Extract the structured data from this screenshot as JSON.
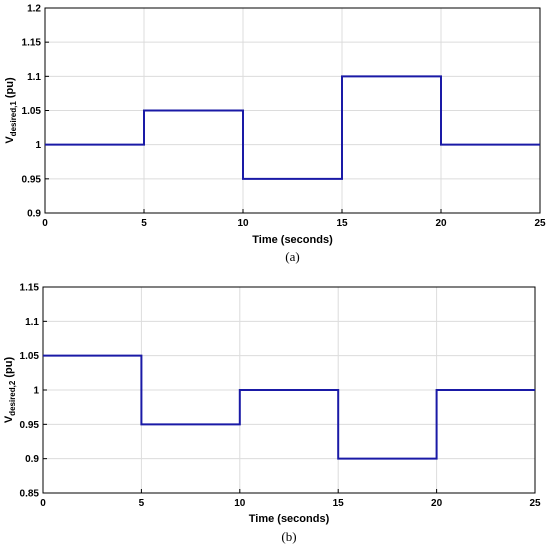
{
  "chart_data": [
    {
      "type": "line",
      "caption": "(a)",
      "xlabel": "Time (seconds)",
      "ylabel_main": "V",
      "ylabel_sub": "desired,1",
      "ylabel_unit": "(pu)",
      "xlim": [
        0,
        25
      ],
      "ylim": [
        0.9,
        1.2
      ],
      "xticks": [
        "0",
        "5",
        "10",
        "15",
        "20",
        "25"
      ],
      "yticks": [
        "0.9",
        "0.95",
        "1",
        "1.05",
        "1.1",
        "1.15",
        "1.2"
      ],
      "grid": true,
      "line_color": "#1a1aa6",
      "series": [
        {
          "x": [
            0,
            5,
            5,
            10,
            10,
            15,
            15,
            20,
            20,
            25
          ],
          "y": [
            1.0,
            1.0,
            1.05,
            1.05,
            0.95,
            0.95,
            1.1,
            1.1,
            1.0,
            1.0
          ]
        }
      ]
    },
    {
      "type": "line",
      "caption": "(b)",
      "xlabel": "Time (seconds)",
      "ylabel_main": "V",
      "ylabel_sub": "desired,2",
      "ylabel_unit": "(pu)",
      "xlim": [
        0,
        25
      ],
      "ylim": [
        0.85,
        1.15
      ],
      "xticks": [
        "0",
        "5",
        "10",
        "15",
        "20",
        "25"
      ],
      "yticks": [
        "0.85",
        "0.9",
        "0.95",
        "1",
        "1.05",
        "1.1",
        "1.15"
      ],
      "grid": true,
      "line_color": "#1a1aa6",
      "series": [
        {
          "x": [
            0,
            5,
            5,
            10,
            10,
            15,
            15,
            20,
            20,
            25
          ],
          "y": [
            1.05,
            1.05,
            0.95,
            0.95,
            1.0,
            1.0,
            0.9,
            0.9,
            1.0,
            1.0
          ]
        }
      ]
    }
  ]
}
